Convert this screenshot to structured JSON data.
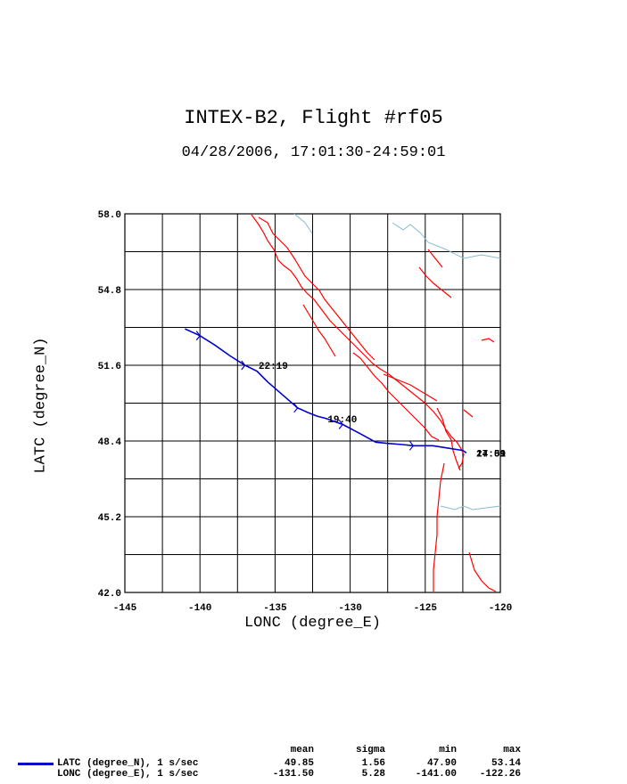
{
  "title": "INTEX-B2, Flight #rf05",
  "subtitle": "04/28/2006, 17:01:30-24:59:01",
  "chart_data": {
    "type": "line",
    "xlabel": "LONC (degree_E)",
    "ylabel": "LATC (degree_N)",
    "xlim": [
      -145,
      -120
    ],
    "ylim": [
      42.0,
      58.0
    ],
    "xticks": [
      "-145",
      "-140",
      "-135",
      "-130",
      "-125",
      "-120"
    ],
    "yticks": [
      "42.0",
      "45.2",
      "48.4",
      "51.6",
      "54.8",
      "58.0"
    ],
    "grid": true,
    "series": [
      {
        "name": "LATC (degree_N), 1 s/sec",
        "color": "#0000cc",
        "x": [
          -122.26,
          -122.5,
          -123.5,
          -124.5,
          -125.8,
          -126.5,
          -127.5,
          -128.3,
          -129.3,
          -130.5,
          -131.6,
          -132.2,
          -132.8,
          -133.5,
          -134.5,
          -135.5,
          -136.2,
          -137.0,
          -138.0,
          -139.0,
          -140.0,
          -141.0
        ],
        "y": [
          47.9,
          48.0,
          48.1,
          48.2,
          48.2,
          48.25,
          48.3,
          48.35,
          48.7,
          49.1,
          49.35,
          49.45,
          49.6,
          49.8,
          50.35,
          50.9,
          51.35,
          51.6,
          52.0,
          52.45,
          52.85,
          53.14
        ]
      }
    ],
    "annotations": [
      {
        "text": "22:19",
        "x": -136.1,
        "y": 51.6
      },
      {
        "text": "19:40",
        "x": -131.5,
        "y": 49.35
      },
      {
        "text": "17:01",
        "x": -121.6,
        "y": 47.9
      },
      {
        "text": "24:59",
        "x": -121.6,
        "y": 47.9
      }
    ]
  },
  "map_color": "#ff0000",
  "border_color": "#88bbcc",
  "stats": {
    "headers": [
      "mean",
      "sigma",
      "min",
      "max"
    ],
    "rows": [
      {
        "label": "LATC (degree_N), 1 s/sec",
        "mean": "49.85",
        "sigma": "1.56",
        "min": "47.90",
        "max": "53.14"
      },
      {
        "label": "LONC (degree_E), 1 s/sec",
        "mean": "-131.50",
        "sigma": "5.28",
        "min": "-141.00",
        "max": "-122.26"
      }
    ]
  }
}
